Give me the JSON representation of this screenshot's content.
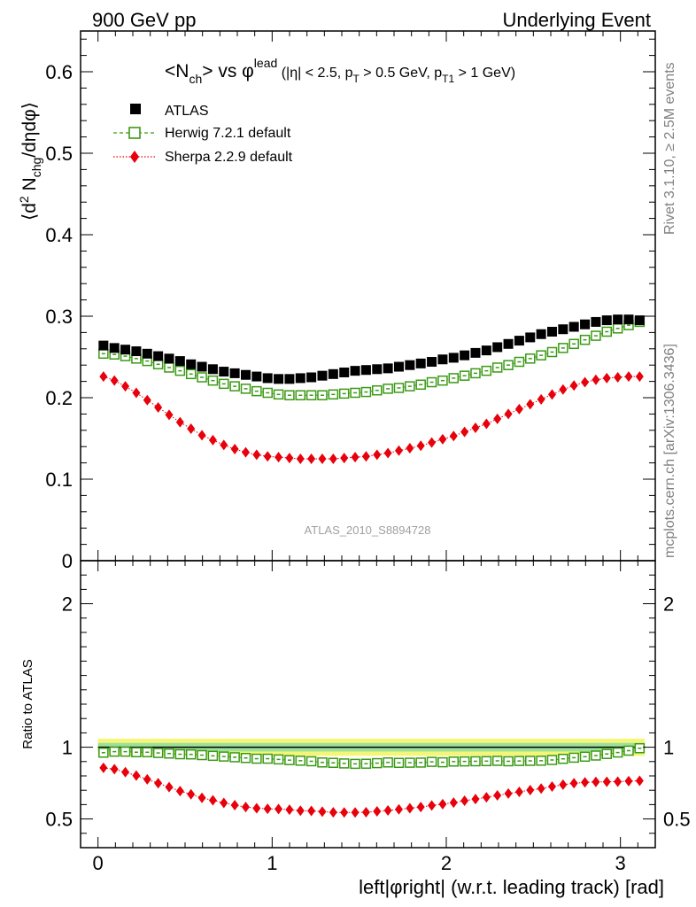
{
  "header": {
    "left": "900 GeV pp",
    "right": "Underlying Event"
  },
  "side_labels": {
    "rivet": "Rivet 3.1.10, ≥ 2.5M events",
    "mcplots": "mcplots.cern.ch [arXiv:1306.3436]"
  },
  "analysis_id": "ATLAS_2010_S8894728",
  "title": {
    "main": "<N",
    "main_sub": "ch",
    "mid": "> vs φ",
    "mid_sup": "lead",
    "cuts_open": " (|η| < 2.5, p",
    "cuts_sub1": "T",
    "cuts_mid": " > 0.5 GeV, p",
    "cuts_sub2": "T1",
    "cuts_close": " > 1 GeV)"
  },
  "ylabel": {
    "open": "⟨d",
    "sup": "2",
    "mid": " N",
    "sub": "chg",
    "close": "/dηdφ⟩"
  },
  "xlabel": "left|φright| (w.r.t. leading track) [rad]",
  "ratio_ylabel": "Ratio to ATLAS",
  "legend": [
    {
      "label": "ATLAS",
      "color": "#000000",
      "marker": "square-filled"
    },
    {
      "label": "Herwig 7.2.1 default",
      "color": "#3a9a14",
      "marker": "square-open"
    },
    {
      "label": "Sherpa 2.2.9 default",
      "color": "#e8000b",
      "marker": "diamond"
    }
  ],
  "chart_data": {
    "type": "scatter",
    "xlim": [
      -0.1,
      3.2
    ],
    "main": {
      "ylim": [
        0,
        0.65
      ],
      "yticks": [
        "0",
        "0.1",
        "0.2",
        "0.3",
        "0.4",
        "0.5",
        "0.6"
      ],
      "series": [
        {
          "name": "ATLAS",
          "values": [
            0.264,
            0.261,
            0.259,
            0.257,
            0.254,
            0.251,
            0.248,
            0.245,
            0.241,
            0.238,
            0.235,
            0.232,
            0.23,
            0.228,
            0.226,
            0.224,
            0.223,
            0.223,
            0.224,
            0.225,
            0.227,
            0.229,
            0.231,
            0.233,
            0.234,
            0.235,
            0.236,
            0.238,
            0.24,
            0.242,
            0.244,
            0.247,
            0.249,
            0.252,
            0.255,
            0.258,
            0.262,
            0.266,
            0.27,
            0.274,
            0.278,
            0.281,
            0.284,
            0.287,
            0.29,
            0.293,
            0.295,
            0.296,
            0.296,
            0.295
          ]
        },
        {
          "name": "Herwig 7.2.1 default",
          "values": [
            0.254,
            0.253,
            0.251,
            0.248,
            0.245,
            0.241,
            0.237,
            0.233,
            0.229,
            0.225,
            0.221,
            0.217,
            0.214,
            0.211,
            0.208,
            0.206,
            0.204,
            0.203,
            0.203,
            0.203,
            0.203,
            0.204,
            0.205,
            0.206,
            0.207,
            0.209,
            0.211,
            0.212,
            0.214,
            0.216,
            0.219,
            0.221,
            0.224,
            0.227,
            0.23,
            0.233,
            0.237,
            0.24,
            0.244,
            0.248,
            0.252,
            0.256,
            0.261,
            0.266,
            0.271,
            0.276,
            0.281,
            0.285,
            0.289,
            0.293
          ]
        },
        {
          "name": "Sherpa 2.2.9 default",
          "values": [
            0.226,
            0.221,
            0.214,
            0.206,
            0.197,
            0.188,
            0.179,
            0.17,
            0.162,
            0.154,
            0.148,
            0.142,
            0.137,
            0.133,
            0.13,
            0.128,
            0.127,
            0.126,
            0.125,
            0.125,
            0.125,
            0.125,
            0.126,
            0.127,
            0.128,
            0.13,
            0.132,
            0.135,
            0.138,
            0.141,
            0.145,
            0.149,
            0.153,
            0.158,
            0.163,
            0.168,
            0.174,
            0.18,
            0.186,
            0.192,
            0.198,
            0.204,
            0.21,
            0.215,
            0.219,
            0.222,
            0.224,
            0.225,
            0.226,
            0.226
          ]
        }
      ]
    },
    "ratio": {
      "ylim": [
        0.3,
        2.3
      ],
      "yticks": [
        "0.5",
        "1",
        "2"
      ],
      "band_inner": [
        0.97,
        1.03
      ],
      "band_outer": [
        0.94,
        1.06
      ],
      "series": [
        {
          "name": "Herwig 7.2.1 default",
          "values": [
            0.962,
            0.969,
            0.969,
            0.965,
            0.965,
            0.96,
            0.956,
            0.951,
            0.95,
            0.945,
            0.94,
            0.935,
            0.93,
            0.925,
            0.92,
            0.92,
            0.915,
            0.91,
            0.906,
            0.902,
            0.894,
            0.891,
            0.887,
            0.884,
            0.885,
            0.889,
            0.894,
            0.891,
            0.892,
            0.893,
            0.898,
            0.895,
            0.9,
            0.901,
            0.902,
            0.903,
            0.905,
            0.902,
            0.904,
            0.905,
            0.906,
            0.911,
            0.919,
            0.927,
            0.934,
            0.942,
            0.953,
            0.963,
            0.976,
            0.993
          ]
        },
        {
          "name": "Sherpa 2.2.9 default",
          "values": [
            0.856,
            0.847,
            0.826,
            0.802,
            0.776,
            0.749,
            0.722,
            0.694,
            0.672,
            0.647,
            0.63,
            0.612,
            0.596,
            0.583,
            0.575,
            0.571,
            0.569,
            0.565,
            0.558,
            0.556,
            0.551,
            0.546,
            0.545,
            0.545,
            0.547,
            0.553,
            0.559,
            0.567,
            0.575,
            0.583,
            0.594,
            0.603,
            0.614,
            0.627,
            0.639,
            0.651,
            0.664,
            0.677,
            0.689,
            0.701,
            0.712,
            0.726,
            0.739,
            0.749,
            0.755,
            0.758,
            0.759,
            0.76,
            0.764,
            0.766
          ]
        }
      ]
    },
    "xticks": [
      "0",
      "1",
      "2",
      "3"
    ]
  }
}
